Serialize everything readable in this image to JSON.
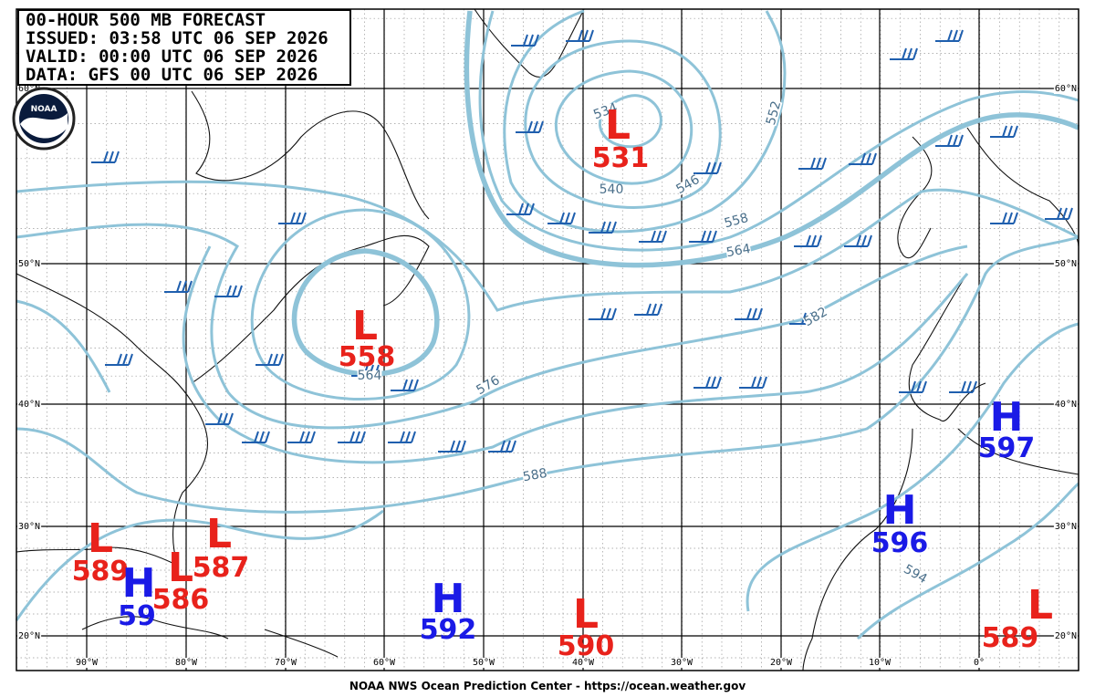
{
  "header": {
    "lines": [
      "00-HOUR 500 MB FORECAST",
      "ISSUED: 03:58 UTC 06 SEP 2026",
      "VALID:  00:00 UTC 06 SEP 2026",
      "DATA:  GFS 00 UTC 06 SEP 2026"
    ]
  },
  "logo": "NOAA",
  "latitudes": [
    "60°N",
    "50°N",
    "40°N",
    "30°N",
    "20°N"
  ],
  "longitudes": [
    "90°W",
    "80°W",
    "70°W",
    "60°W",
    "50°W",
    "40°W",
    "30°W",
    "20°W",
    "10°W",
    "0°"
  ],
  "centers": [
    {
      "symbol": "L",
      "value": 531
    },
    {
      "symbol": "L",
      "value": 558
    },
    {
      "symbol": "H",
      "value": 597
    },
    {
      "symbol": "H",
      "value": 596
    },
    {
      "symbol": "L",
      "value": 589
    },
    {
      "symbol": "H",
      "value": 59
    },
    {
      "symbol": "L",
      "value": 586
    },
    {
      "symbol": "L",
      "value": 587
    },
    {
      "symbol": "H",
      "value": 592
    },
    {
      "symbol": "L",
      "value": 590
    },
    {
      "symbol": "L",
      "value": 589
    }
  ],
  "contour_labels": [
    534,
    540,
    546,
    552,
    558,
    564,
    564,
    576,
    582,
    588,
    594
  ],
  "footer": "NOAA NWS Ocean Prediction Center - https://ocean.weather.gov"
}
